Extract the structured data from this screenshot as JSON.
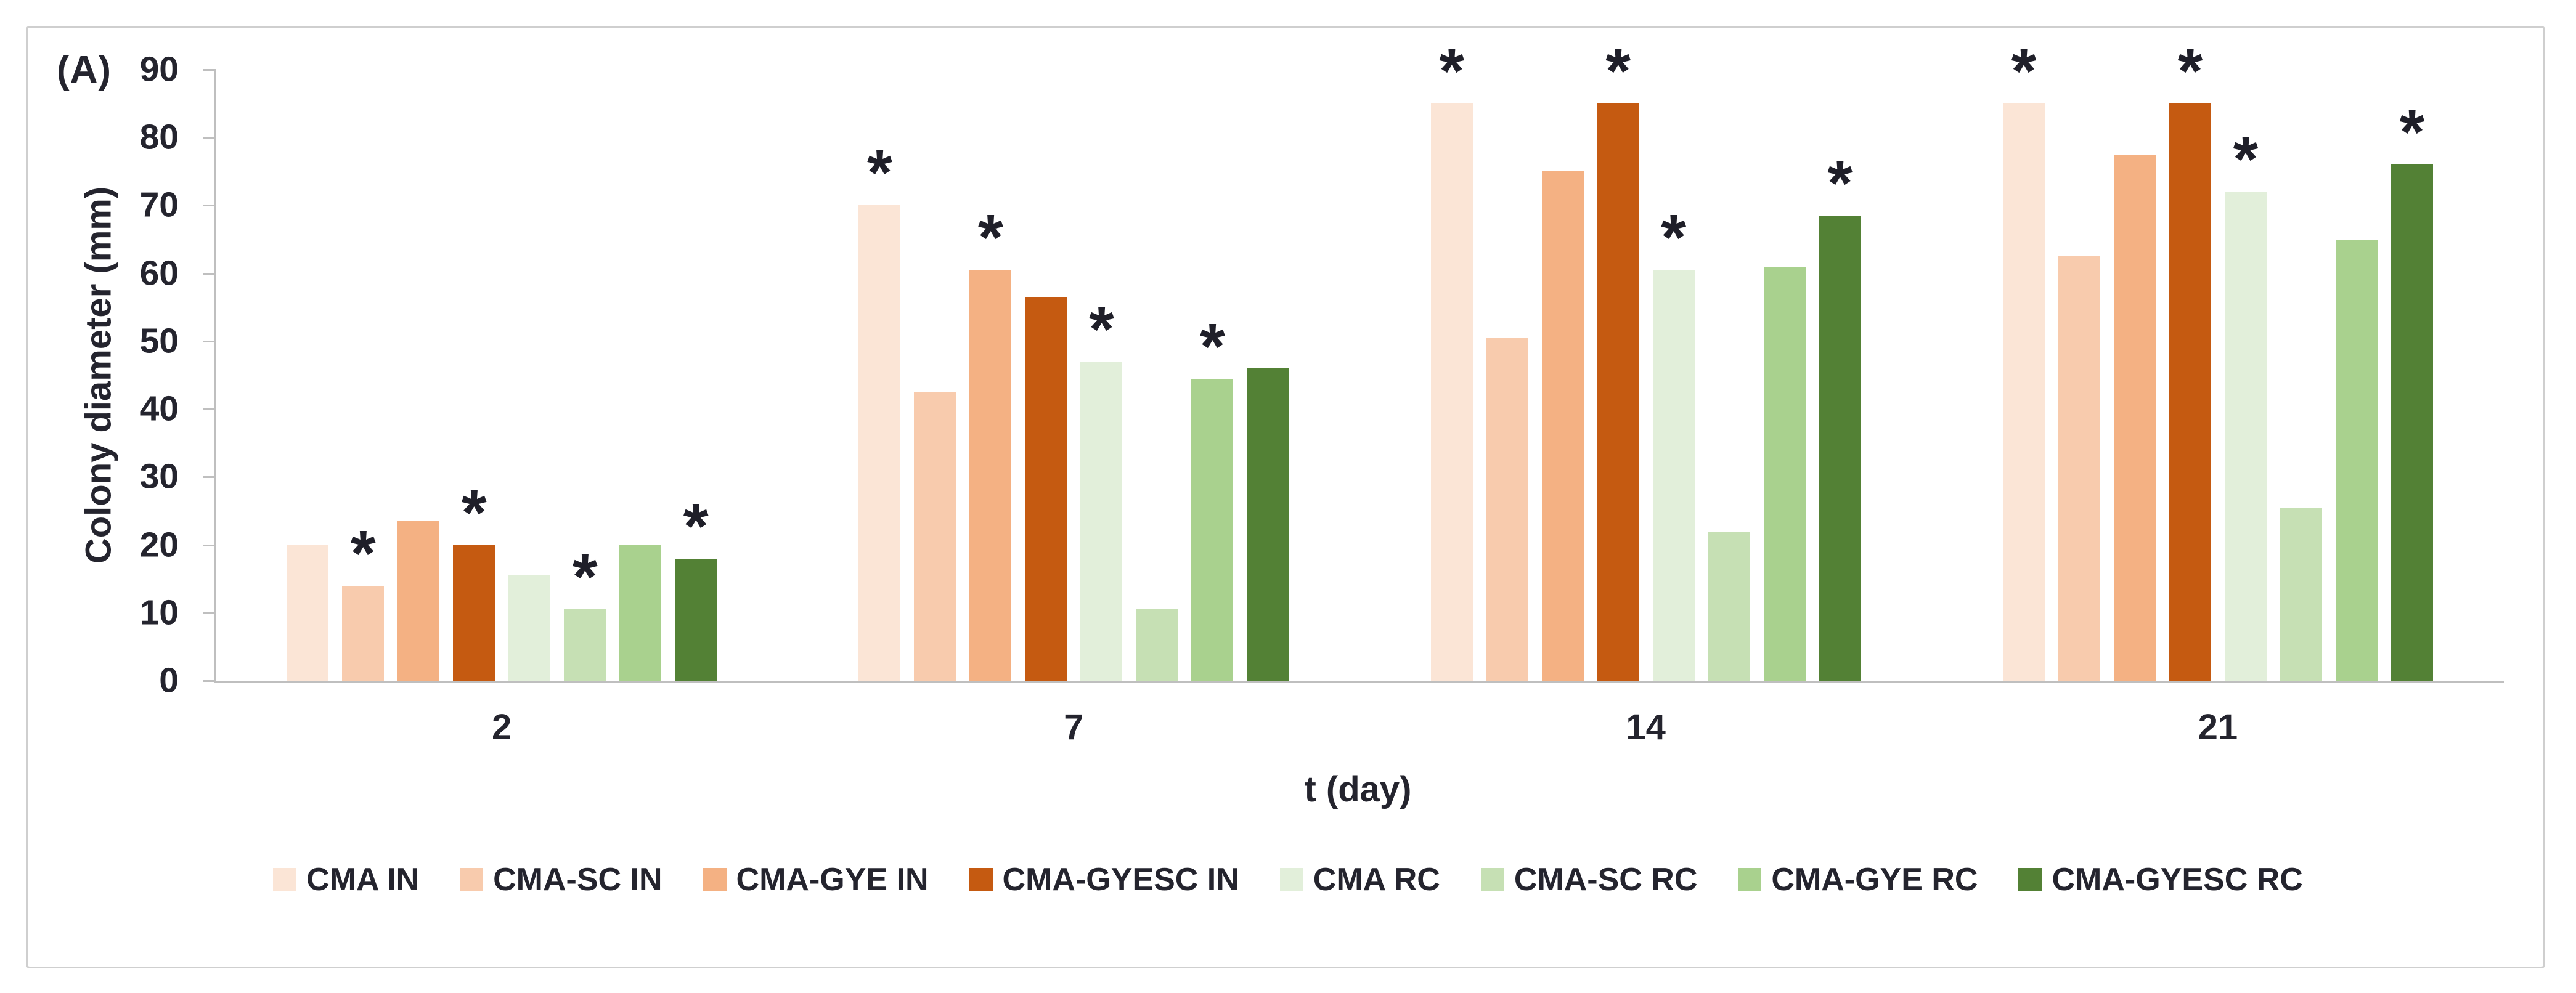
{
  "figure_label": "(A)",
  "colors": {
    "axis": "#bfbfbf",
    "text": "#24242e",
    "star": "#1f1f29",
    "figure_border": "#cfcfcf",
    "background": "#ffffff"
  },
  "chart_data": {
    "type": "bar",
    "title": "",
    "xlabel": "t (day)",
    "ylabel": "Colony diameter (mm)",
    "ylim": [
      0,
      90
    ],
    "ytick_step": 10,
    "grid": false,
    "legend_position": "bottom",
    "categories": [
      "2",
      "7",
      "14",
      "21"
    ],
    "series": [
      {
        "name": "CMA IN",
        "color": "#fbe5d6",
        "values": [
          20,
          70,
          85,
          85
        ]
      },
      {
        "name": "CMA-SC IN",
        "color": "#f8cbad",
        "values": [
          14,
          42.5,
          50.5,
          62.5
        ]
      },
      {
        "name": "CMA-GYE IN",
        "color": "#f4b183",
        "values": [
          23.5,
          60.5,
          75,
          77.5
        ]
      },
      {
        "name": "CMA-GYESC IN",
        "color": "#c55a11",
        "values": [
          20,
          56.5,
          85,
          85
        ]
      },
      {
        "name": "CMA RC",
        "color": "#e2efda",
        "values": [
          15.5,
          47,
          60.5,
          72
        ]
      },
      {
        "name": "CMA-SC RC",
        "color": "#c6e0b4",
        "values": [
          10.5,
          10.5,
          22,
          25.5
        ]
      },
      {
        "name": "CMA-GYE RC",
        "color": "#a9d18e",
        "values": [
          20,
          44.5,
          61,
          65
        ]
      },
      {
        "name": "CMA-GYESC RC",
        "color": "#538135",
        "values": [
          18,
          46,
          68.5,
          76
        ]
      }
    ],
    "significance_star_symbol": "*",
    "significance_stars_by_category": [
      [
        2,
        4,
        6,
        8
      ],
      [
        1,
        3,
        5,
        7
      ],
      [
        1,
        4,
        5,
        8
      ],
      [
        1,
        4,
        5,
        8
      ]
    ]
  }
}
